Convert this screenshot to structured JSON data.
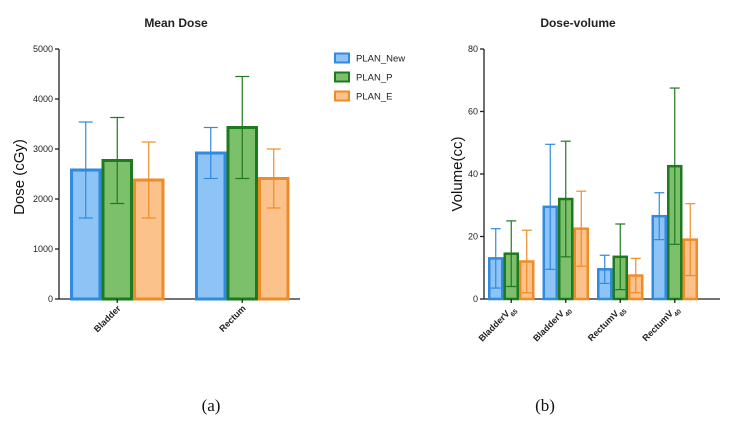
{
  "chart_data": [
    {
      "type": "bar",
      "title": "Mean Dose",
      "ylabel": "Dose (cGy)",
      "xlabel": "",
      "ylim": [
        0,
        5000
      ],
      "yticks": [
        0,
        1000,
        2000,
        3000,
        4000,
        5000
      ],
      "categories": [
        "Bladder",
        "Rectum"
      ],
      "series": [
        {
          "name": "PLAN_New",
          "values": [
            2580,
            2920
          ],
          "errors": [
            960,
            510
          ]
        },
        {
          "name": "PLAN_P",
          "values": [
            2770,
            3430
          ],
          "errors": [
            860,
            1020
          ]
        },
        {
          "name": "PLAN_E",
          "values": [
            2380,
            2410
          ],
          "errors": [
            760,
            590
          ]
        }
      ],
      "caption": "(a)"
    },
    {
      "type": "bar",
      "title": "Dose-volume",
      "ylabel": "Volume(cc)",
      "xlabel": "",
      "ylim": [
        0,
        80
      ],
      "yticks": [
        0,
        20,
        40,
        60,
        80
      ],
      "categories": [
        "BladderV65",
        "BladderV40",
        "RectumV65",
        "RectumV40"
      ],
      "category_parts": [
        {
          "base": "BladderV",
          "sub": "65"
        },
        {
          "base": "BladderV",
          "sub": "40"
        },
        {
          "base": "RectumV",
          "sub": "65"
        },
        {
          "base": "RectumV",
          "sub": "40"
        }
      ],
      "series": [
        {
          "name": "PLAN_New",
          "values": [
            13,
            29.5,
            9.5,
            26.5
          ],
          "errors": [
            9.5,
            20,
            4.5,
            7.5
          ]
        },
        {
          "name": "PLAN_P",
          "values": [
            14.5,
            32,
            13.5,
            42.5
          ],
          "errors": [
            10.5,
            18.5,
            10.5,
            25
          ]
        },
        {
          "name": "PLAN_E",
          "values": [
            12,
            22.5,
            7.5,
            19
          ],
          "errors": [
            10,
            12,
            5.5,
            11.5
          ]
        }
      ],
      "caption": "(b)"
    }
  ],
  "legend": {
    "placement": "between-panels",
    "items": [
      {
        "label": "PLAN_New",
        "fill": "#8ec3f5",
        "stroke": "#2f8ae0"
      },
      {
        "label": "PLAN_P",
        "fill": "#7cc06c",
        "stroke": "#1f7a1f"
      },
      {
        "label": "PLAN_E",
        "fill": "#fbc38b",
        "stroke": "#f08c28"
      }
    ]
  },
  "colors": {
    "PLAN_New": {
      "fill": "#8ec3f5",
      "stroke": "#2f8ae0"
    },
    "PLAN_P": {
      "fill": "#7cc06c",
      "stroke": "#1f7a1f"
    },
    "PLAN_E": {
      "fill": "#fbc38b",
      "stroke": "#f08c28"
    }
  }
}
